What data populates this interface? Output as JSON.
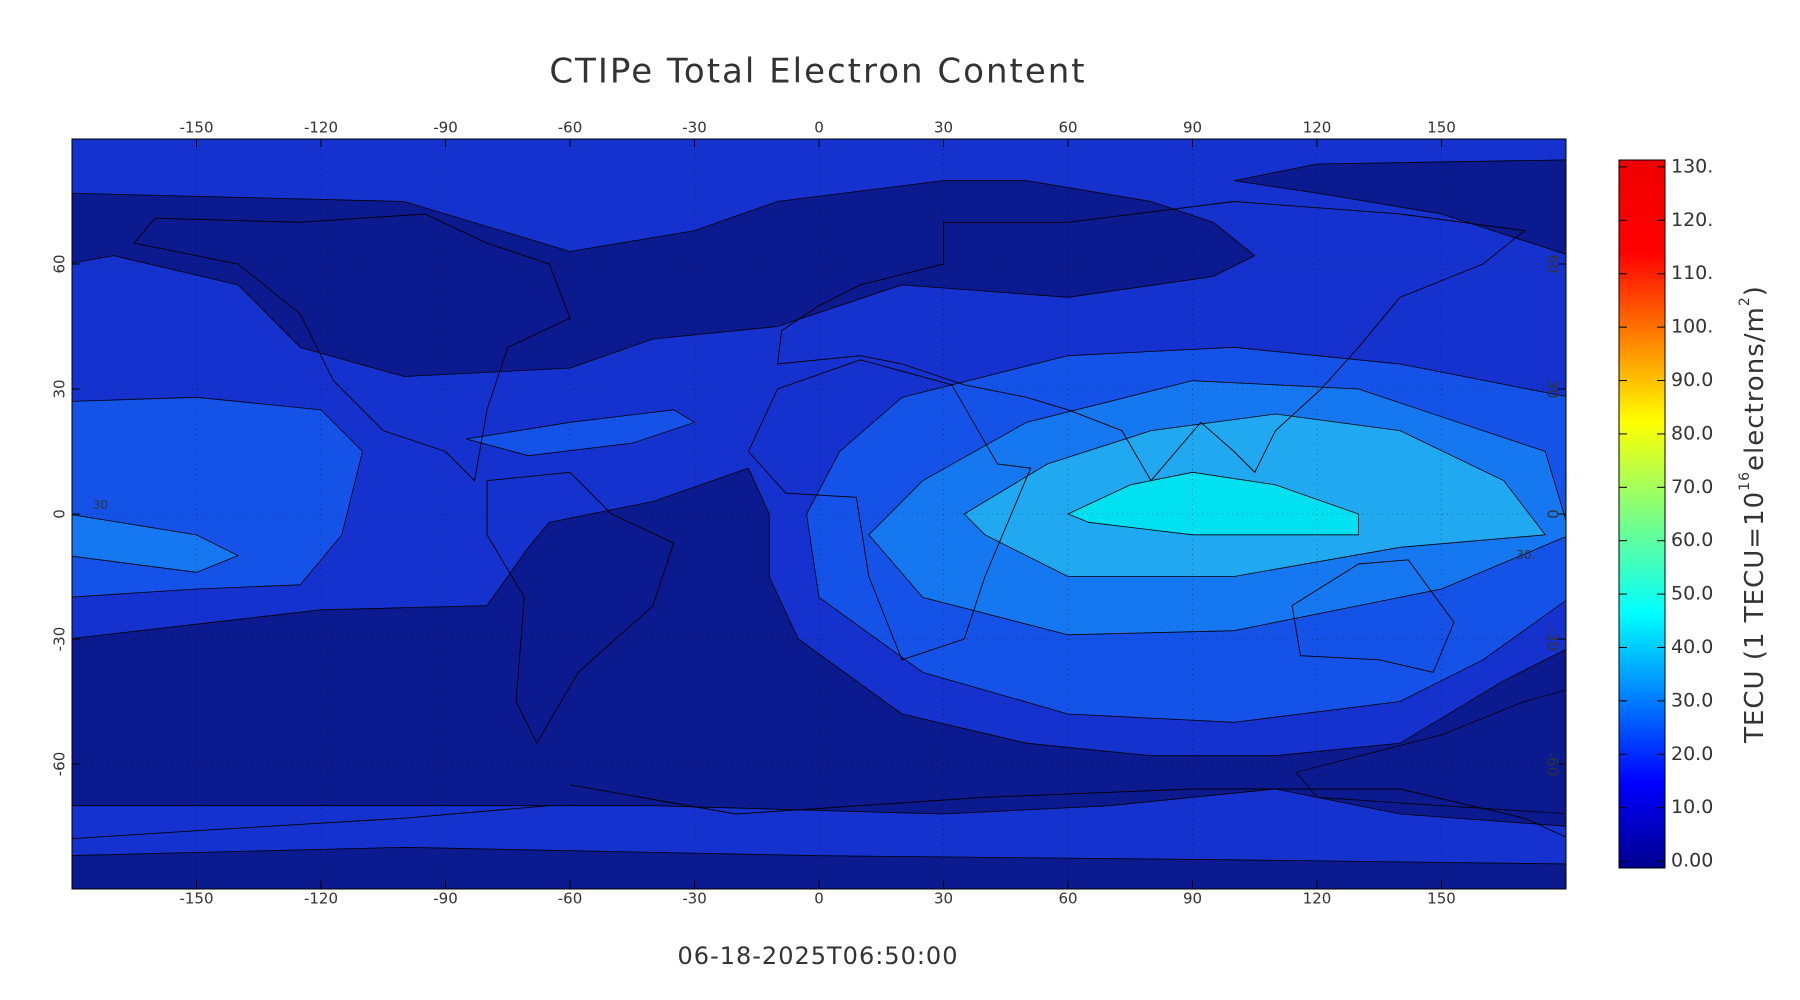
{
  "title": "CTIPe Total Electron Content",
  "timestamp": "06-18-2025T06:50:00",
  "map": {
    "xlim": [
      -180,
      180
    ],
    "ylim": [
      -90,
      90
    ],
    "xticks": [
      -150,
      -120,
      -90,
      -60,
      -30,
      0,
      30,
      60,
      90,
      120,
      150
    ],
    "yticks": [
      -60,
      -30,
      0,
      30,
      60
    ],
    "grid": true,
    "contour_labels": [
      "30",
      "30."
    ]
  },
  "colorbar": {
    "label_parts": [
      "TECU (1 TECU=10",
      "16",
      "electrons/m",
      "2",
      ")"
    ],
    "lim": [
      -1.3,
      131.3
    ],
    "ticks": [
      {
        "value": 0,
        "label": "0.00"
      },
      {
        "value": 10,
        "label": "10.0"
      },
      {
        "value": 20,
        "label": "20.0"
      },
      {
        "value": 30,
        "label": "30.0"
      },
      {
        "value": 40,
        "label": "40.0"
      },
      {
        "value": 50,
        "label": "50.0"
      },
      {
        "value": 60,
        "label": "60.0"
      },
      {
        "value": 70,
        "label": "70.0"
      },
      {
        "value": 80,
        "label": "80.0"
      },
      {
        "value": 90,
        "label": "90.0"
      },
      {
        "value": 100,
        "label": "100."
      },
      {
        "value": 110,
        "label": "110."
      },
      {
        "value": 120,
        "label": "120."
      },
      {
        "value": 130,
        "label": "130."
      }
    ]
  }
}
